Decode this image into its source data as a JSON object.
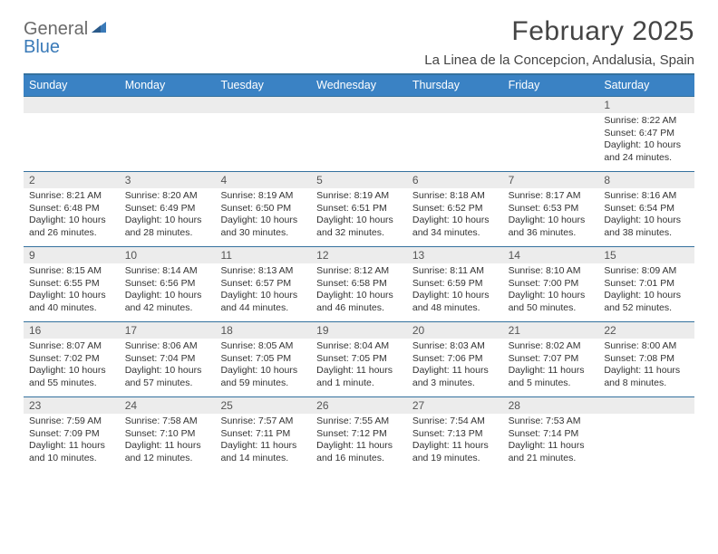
{
  "header": {
    "logo_general": "General",
    "logo_blue": "Blue",
    "month_title": "February 2025",
    "location": "La Linea de la Concepcion, Andalusia, Spain"
  },
  "colors": {
    "header_bar": "#3a82c4",
    "rule": "#34719e",
    "daynum_bg": "#ececec",
    "text": "#333333",
    "logo_gray": "#6a6a6a",
    "logo_blue": "#3a7ab8"
  },
  "typography": {
    "title_fontsize": 30,
    "location_fontsize": 15,
    "dow_fontsize": 12.5,
    "daynum_fontsize": 12,
    "body_fontsize": 10.5
  },
  "days_of_week": [
    "Sunday",
    "Monday",
    "Tuesday",
    "Wednesday",
    "Thursday",
    "Friday",
    "Saturday"
  ],
  "weeks": [
    [
      null,
      null,
      null,
      null,
      null,
      null,
      {
        "n": "1",
        "sunrise": "8:22 AM",
        "sunset": "6:47 PM",
        "daylight": "10 hours and 24 minutes."
      }
    ],
    [
      {
        "n": "2",
        "sunrise": "8:21 AM",
        "sunset": "6:48 PM",
        "daylight": "10 hours and 26 minutes."
      },
      {
        "n": "3",
        "sunrise": "8:20 AM",
        "sunset": "6:49 PM",
        "daylight": "10 hours and 28 minutes."
      },
      {
        "n": "4",
        "sunrise": "8:19 AM",
        "sunset": "6:50 PM",
        "daylight": "10 hours and 30 minutes."
      },
      {
        "n": "5",
        "sunrise": "8:19 AM",
        "sunset": "6:51 PM",
        "daylight": "10 hours and 32 minutes."
      },
      {
        "n": "6",
        "sunrise": "8:18 AM",
        "sunset": "6:52 PM",
        "daylight": "10 hours and 34 minutes."
      },
      {
        "n": "7",
        "sunrise": "8:17 AM",
        "sunset": "6:53 PM",
        "daylight": "10 hours and 36 minutes."
      },
      {
        "n": "8",
        "sunrise": "8:16 AM",
        "sunset": "6:54 PM",
        "daylight": "10 hours and 38 minutes."
      }
    ],
    [
      {
        "n": "9",
        "sunrise": "8:15 AM",
        "sunset": "6:55 PM",
        "daylight": "10 hours and 40 minutes."
      },
      {
        "n": "10",
        "sunrise": "8:14 AM",
        "sunset": "6:56 PM",
        "daylight": "10 hours and 42 minutes."
      },
      {
        "n": "11",
        "sunrise": "8:13 AM",
        "sunset": "6:57 PM",
        "daylight": "10 hours and 44 minutes."
      },
      {
        "n": "12",
        "sunrise": "8:12 AM",
        "sunset": "6:58 PM",
        "daylight": "10 hours and 46 minutes."
      },
      {
        "n": "13",
        "sunrise": "8:11 AM",
        "sunset": "6:59 PM",
        "daylight": "10 hours and 48 minutes."
      },
      {
        "n": "14",
        "sunrise": "8:10 AM",
        "sunset": "7:00 PM",
        "daylight": "10 hours and 50 minutes."
      },
      {
        "n": "15",
        "sunrise": "8:09 AM",
        "sunset": "7:01 PM",
        "daylight": "10 hours and 52 minutes."
      }
    ],
    [
      {
        "n": "16",
        "sunrise": "8:07 AM",
        "sunset": "7:02 PM",
        "daylight": "10 hours and 55 minutes."
      },
      {
        "n": "17",
        "sunrise": "8:06 AM",
        "sunset": "7:04 PM",
        "daylight": "10 hours and 57 minutes."
      },
      {
        "n": "18",
        "sunrise": "8:05 AM",
        "sunset": "7:05 PM",
        "daylight": "10 hours and 59 minutes."
      },
      {
        "n": "19",
        "sunrise": "8:04 AM",
        "sunset": "7:05 PM",
        "daylight": "11 hours and 1 minute."
      },
      {
        "n": "20",
        "sunrise": "8:03 AM",
        "sunset": "7:06 PM",
        "daylight": "11 hours and 3 minutes."
      },
      {
        "n": "21",
        "sunrise": "8:02 AM",
        "sunset": "7:07 PM",
        "daylight": "11 hours and 5 minutes."
      },
      {
        "n": "22",
        "sunrise": "8:00 AM",
        "sunset": "7:08 PM",
        "daylight": "11 hours and 8 minutes."
      }
    ],
    [
      {
        "n": "23",
        "sunrise": "7:59 AM",
        "sunset": "7:09 PM",
        "daylight": "11 hours and 10 minutes."
      },
      {
        "n": "24",
        "sunrise": "7:58 AM",
        "sunset": "7:10 PM",
        "daylight": "11 hours and 12 minutes."
      },
      {
        "n": "25",
        "sunrise": "7:57 AM",
        "sunset": "7:11 PM",
        "daylight": "11 hours and 14 minutes."
      },
      {
        "n": "26",
        "sunrise": "7:55 AM",
        "sunset": "7:12 PM",
        "daylight": "11 hours and 16 minutes."
      },
      {
        "n": "27",
        "sunrise": "7:54 AM",
        "sunset": "7:13 PM",
        "daylight": "11 hours and 19 minutes."
      },
      {
        "n": "28",
        "sunrise": "7:53 AM",
        "sunset": "7:14 PM",
        "daylight": "11 hours and 21 minutes."
      },
      null
    ]
  ],
  "labels": {
    "sunrise": "Sunrise: ",
    "sunset": "Sunset: ",
    "daylight": "Daylight: "
  }
}
